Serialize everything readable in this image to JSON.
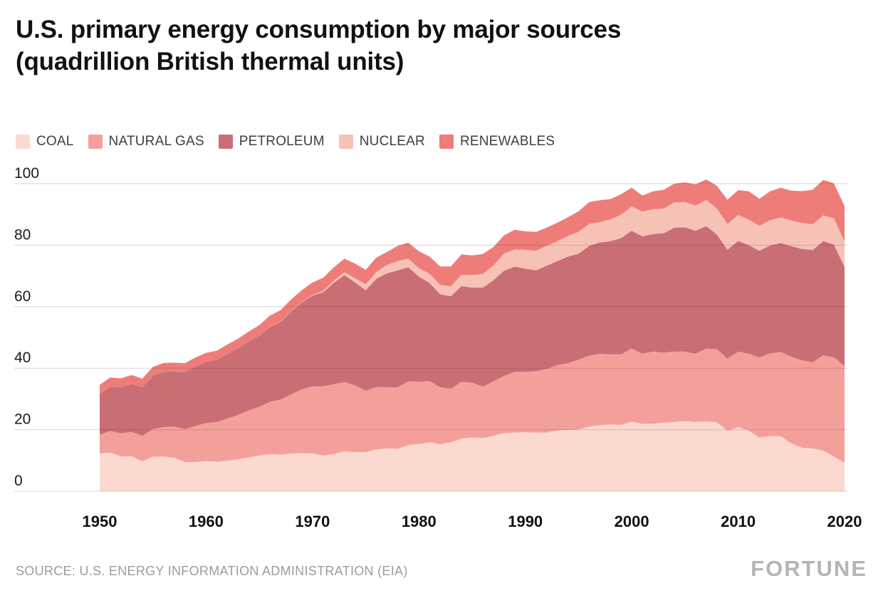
{
  "page": {
    "title_line1": "U.S. primary energy consumption by major sources",
    "title_line2": "(quadrillion British thermal units)",
    "source": "SOURCE: U.S. ENERGY INFORMATION ADMINISTRATION (EIA)",
    "brand": "FORTUNE"
  },
  "chart_data": {
    "type": "area",
    "stacked": true,
    "title": "U.S. primary energy consumption by major sources (quadrillion British thermal units)",
    "xlabel": "",
    "ylabel": "",
    "x_range": {
      "start": 1950,
      "end": 2020,
      "step": 1
    },
    "x_ticks": [
      1950,
      1960,
      1970,
      1980,
      1990,
      2000,
      2010,
      2020
    ],
    "y_ticks": [
      0,
      20,
      40,
      60,
      80,
      100
    ],
    "ylim": [
      0,
      100
    ],
    "grid": "horizontal",
    "legend_position": "top",
    "series": [
      {
        "name": "COAL",
        "color": "#fbd9d0",
        "values": [
          12.3,
          12.6,
          11.3,
          11.4,
          9.7,
          11.2,
          11.3,
          10.8,
          9.5,
          9.5,
          9.8,
          9.6,
          9.9,
          10.4,
          11.0,
          11.6,
          12.1,
          11.9,
          12.3,
          12.4,
          12.3,
          11.6,
          12.1,
          13.0,
          12.7,
          12.7,
          13.6,
          13.9,
          13.8,
          15.0,
          15.4,
          15.9,
          15.3,
          15.9,
          17.1,
          17.5,
          17.3,
          18.0,
          18.9,
          19.1,
          19.2,
          19.0,
          19.1,
          19.8,
          19.9,
          20.1,
          21.0,
          21.5,
          21.7,
          21.6,
          22.6,
          21.9,
          21.9,
          22.3,
          22.5,
          22.8,
          22.5,
          22.7,
          22.4,
          19.7,
          20.8,
          19.7,
          17.4,
          18.0,
          17.9,
          15.5,
          14.2,
          13.9,
          13.2,
          11.3,
          9.2
        ]
      },
      {
        "name": "NATURAL GAS",
        "color": "#f4a09a",
        "values": [
          6.0,
          7.0,
          7.5,
          7.9,
          8.3,
          9.0,
          9.6,
          10.2,
          10.7,
          11.7,
          12.4,
          12.9,
          13.7,
          14.4,
          15.3,
          15.8,
          17.0,
          17.9,
          19.2,
          20.7,
          21.8,
          22.5,
          22.7,
          22.5,
          21.7,
          20.0,
          20.3,
          19.9,
          20.0,
          20.7,
          20.2,
          19.9,
          18.5,
          17.4,
          18.5,
          17.8,
          16.7,
          17.7,
          18.6,
          19.7,
          19.6,
          20.0,
          20.7,
          21.2,
          21.7,
          22.7,
          23.1,
          23.2,
          22.8,
          22.9,
          23.8,
          22.8,
          23.5,
          22.8,
          22.9,
          22.6,
          22.2,
          23.7,
          23.8,
          23.4,
          24.6,
          25.0,
          26.1,
          26.8,
          27.4,
          28.2,
          28.4,
          28.0,
          31.0,
          32.2,
          31.5
        ]
      },
      {
        "name": "PETROLEUM",
        "color": "#ca6e76",
        "values": [
          13.3,
          14.4,
          15.0,
          15.6,
          15.8,
          17.3,
          17.9,
          17.9,
          18.5,
          19.3,
          19.9,
          20.2,
          21.0,
          21.7,
          22.3,
          23.2,
          24.4,
          25.3,
          27.0,
          28.3,
          29.5,
          30.6,
          33.0,
          34.8,
          33.5,
          32.7,
          35.2,
          37.1,
          38.0,
          37.1,
          34.2,
          31.9,
          30.2,
          30.1,
          31.1,
          30.9,
          32.2,
          32.9,
          34.2,
          34.2,
          33.6,
          32.8,
          33.5,
          33.8,
          34.7,
          34.4,
          35.7,
          36.2,
          36.8,
          37.8,
          38.3,
          38.2,
          38.2,
          38.8,
          40.3,
          40.4,
          40.0,
          39.8,
          37.3,
          35.4,
          36.0,
          35.3,
          34.7,
          35.1,
          35.4,
          36.0,
          36.2,
          36.5,
          37.1,
          36.7,
          32.2
        ]
      },
      {
        "name": "NUCLEAR",
        "color": "#f7c2b6",
        "values": [
          0,
          0,
          0,
          0,
          0,
          0,
          0,
          0,
          0,
          0,
          0,
          0,
          0,
          0,
          0,
          0,
          0.1,
          0.1,
          0.1,
          0.1,
          0.2,
          0.4,
          0.6,
          0.9,
          1.3,
          1.9,
          2.1,
          2.7,
          3.0,
          2.8,
          2.7,
          3.0,
          3.1,
          3.2,
          3.6,
          4.1,
          4.4,
          4.8,
          5.6,
          5.6,
          6.1,
          6.4,
          6.5,
          6.4,
          6.7,
          7.1,
          7.1,
          6.6,
          7.1,
          7.6,
          7.9,
          8.0,
          8.1,
          8.0,
          8.2,
          8.2,
          8.2,
          8.5,
          8.4,
          8.4,
          8.4,
          8.3,
          8.1,
          8.2,
          8.3,
          8.3,
          8.4,
          8.4,
          8.4,
          8.5,
          8.2
        ]
      },
      {
        "name": "RENEWABLES",
        "color": "#ee7d79",
        "values": [
          3.0,
          3.0,
          2.9,
          2.9,
          2.8,
          2.9,
          2.9,
          2.9,
          2.9,
          3.0,
          2.9,
          3.0,
          3.1,
          3.1,
          3.3,
          3.4,
          3.5,
          3.7,
          3.8,
          3.9,
          4.1,
          4.3,
          4.4,
          4.4,
          4.8,
          4.7,
          4.8,
          4.2,
          5.0,
          5.2,
          5.5,
          5.6,
          6.0,
          6.5,
          6.7,
          6.4,
          6.5,
          6.0,
          5.9,
          6.4,
          6.0,
          6.1,
          5.9,
          6.1,
          6.1,
          6.7,
          7.1,
          7.1,
          6.6,
          6.7,
          6.1,
          5.2,
          5.8,
          6.1,
          6.1,
          6.4,
          6.9,
          6.7,
          7.4,
          7.9,
          8.1,
          9.2,
          8.8,
          9.4,
          9.7,
          9.7,
          10.4,
          11.2,
          11.5,
          11.4,
          11.6
        ]
      }
    ]
  }
}
